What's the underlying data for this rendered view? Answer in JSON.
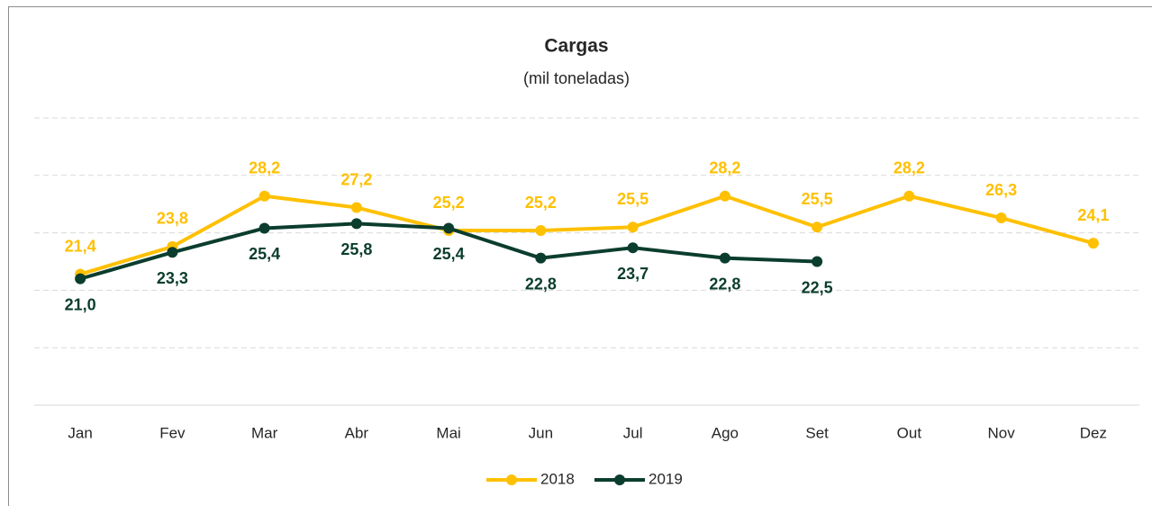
{
  "chart_data": {
    "type": "line",
    "title": "Cargas",
    "subtitle": "(mil toneladas)",
    "categories": [
      "Jan",
      "Fev",
      "Mar",
      "Abr",
      "Mai",
      "Jun",
      "Jul",
      "Ago",
      "Set",
      "Out",
      "Nov",
      "Dez"
    ],
    "series": [
      {
        "name": "2018",
        "color": "#ffc000",
        "values": [
          21.4,
          23.8,
          28.2,
          27.2,
          25.2,
          25.2,
          25.5,
          28.2,
          25.5,
          28.2,
          26.3,
          24.1
        ],
        "value_labels": [
          "21,4",
          "23,8",
          "28,2",
          "27,2",
          "25,2",
          "25,2",
          "25,5",
          "28,2",
          "25,5",
          "28,2",
          "26,3",
          "24,1"
        ]
      },
      {
        "name": "2019",
        "color": "#0b3d2e",
        "values": [
          21.0,
          23.3,
          25.4,
          25.8,
          25.4,
          22.8,
          23.7,
          22.8,
          22.5,
          null,
          null,
          null
        ],
        "value_labels": [
          "21,0",
          "23,3",
          "25,4",
          "25,8",
          "25,4",
          "22,8",
          "23,7",
          "22,8",
          "22,5",
          null,
          null,
          null
        ]
      }
    ],
    "ylim": [
      10,
      35
    ],
    "yticks": [
      10,
      15,
      20,
      25,
      30,
      35
    ],
    "grid": true,
    "legend": "bottom"
  }
}
